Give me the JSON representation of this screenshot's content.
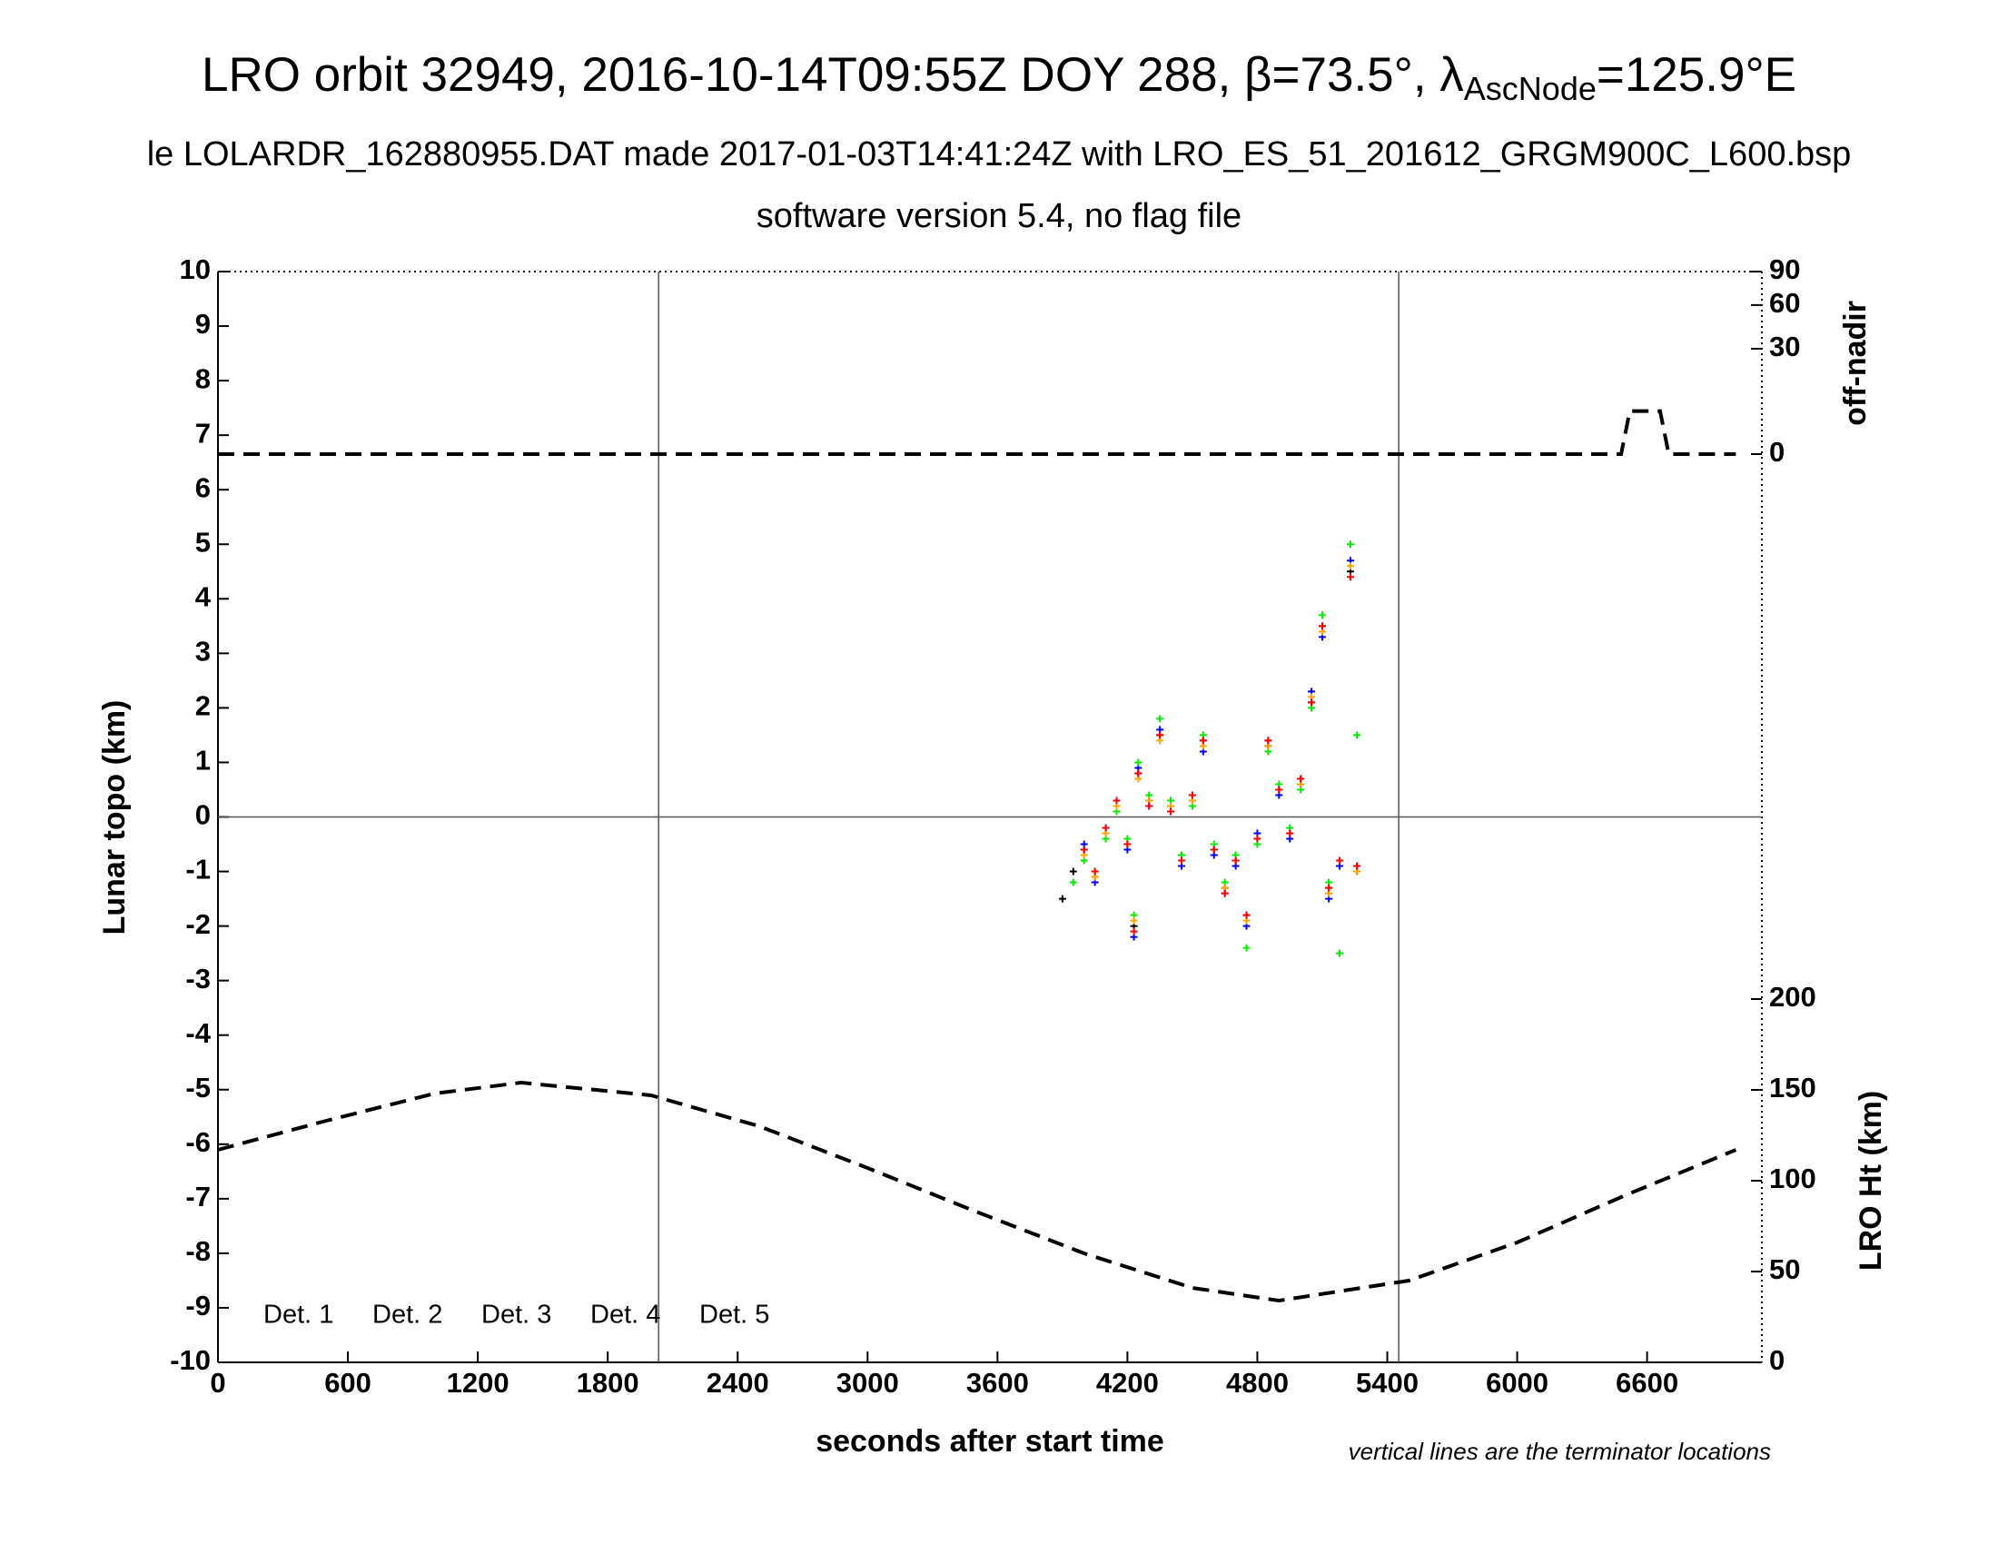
{
  "chart_data": {
    "type": "scatter",
    "title": "LRO orbit 32949, 2016-10-14T09:55Z DOY 288, β=73.5°, λ",
    "title_subscript": "AscNode",
    "title_end": "=125.9°E",
    "subtitle": "le LOLARDR_162880955.DAT made 2017-01-03T14:41:24Z with LRO_ES_51_201612_GRGM900C_L600.bsp",
    "subtitle2": "software version 5.4, no flag file",
    "xlabel": "seconds after start time",
    "ylabel": "Lunar topo (km)",
    "y2label": "off-nadir",
    "y3label": "LRO Ht (km)",
    "note": "vertical lines are the terminator locations",
    "xlim": [
      0,
      7130
    ],
    "xticks": [
      0,
      600,
      1200,
      1800,
      2400,
      3000,
      3600,
      4200,
      4800,
      5400,
      6000,
      6600
    ],
    "ylim": [
      -10,
      10
    ],
    "yticks": [
      -10,
      -9,
      -8,
      -7,
      -6,
      -5,
      -4,
      -3,
      -2,
      -1,
      0,
      1,
      2,
      3,
      4,
      5,
      6,
      7,
      8,
      9,
      10
    ],
    "y2lim": [
      0,
      90
    ],
    "y2scale": "sqrt",
    "y2ticks": [
      0,
      30,
      60,
      90
    ],
    "y3lim": [
      0,
      200
    ],
    "y3ticks": [
      0,
      50,
      100,
      150,
      200
    ],
    "terminators": [
      2035,
      5453
    ],
    "legend": "lower left",
    "x": [
      3900,
      3950,
      4000,
      4050,
      4100,
      4150,
      4200,
      4230,
      4250,
      4300,
      4350,
      4400,
      4450,
      4500,
      4550,
      4600,
      4650,
      4700,
      4750,
      4800,
      4850,
      4900,
      4950,
      5000,
      5050,
      5100,
      5130,
      5180,
      5230,
      5260
    ],
    "series": [
      {
        "name": "Det. 1",
        "color": "#000000",
        "values": [
          -1.5,
          -1.0,
          -0.6,
          -1.1,
          -0.3,
          0.2,
          -0.5,
          -2.0,
          0.8,
          0.3,
          1.5,
          0.2,
          -0.8,
          0.3,
          1.4,
          -0.6,
          -1.3,
          -0.8,
          -1.8,
          -0.4,
          1.3,
          0.5,
          -0.3,
          0.6,
          2.1,
          3.5,
          -1.3,
          -0.8,
          4.5,
          -1.0
        ]
      },
      {
        "name": "Det. 2",
        "color": "#0000ff",
        "values": [
          null,
          null,
          -0.5,
          -1.2,
          -0.2,
          0.3,
          -0.6,
          -2.2,
          0.9,
          0.2,
          1.6,
          0.1,
          -0.9,
          0.4,
          1.2,
          -0.7,
          -1.4,
          -0.9,
          -2.0,
          -0.3,
          1.4,
          0.4,
          -0.4,
          0.7,
          2.3,
          3.3,
          -1.5,
          -0.9,
          4.7,
          -0.9
        ]
      },
      {
        "name": "Det. 3",
        "color": "#00ee00",
        "values": [
          null,
          -1.2,
          -0.8,
          -1.0,
          -0.4,
          0.1,
          -0.4,
          -1.8,
          1.0,
          0.4,
          1.8,
          0.3,
          -0.7,
          0.2,
          1.5,
          -0.5,
          -1.2,
          -0.7,
          -2.4,
          -0.5,
          1.2,
          0.6,
          -0.2,
          0.5,
          2.0,
          3.7,
          -1.2,
          -2.5,
          5.0,
          1.5
        ]
      },
      {
        "name": "Det. 4",
        "color": "#ffa500",
        "values": [
          null,
          null,
          -0.7,
          -1.1,
          -0.3,
          0.2,
          -0.5,
          -1.9,
          0.7,
          0.3,
          1.4,
          0.2,
          -0.8,
          0.3,
          1.3,
          -0.6,
          -1.3,
          -0.8,
          -1.9,
          -0.4,
          1.3,
          0.5,
          -0.3,
          0.6,
          2.2,
          3.4,
          -1.4,
          -0.8,
          4.6,
          -1.0
        ]
      },
      {
        "name": "Det. 5",
        "color": "#ff0000",
        "values": [
          null,
          null,
          -0.6,
          -1.0,
          -0.2,
          0.3,
          -0.5,
          -2.1,
          0.8,
          0.2,
          1.5,
          0.1,
          -0.8,
          0.4,
          1.4,
          -0.6,
          -1.4,
          -0.8,
          -1.8,
          -0.4,
          1.4,
          0.5,
          -0.3,
          0.7,
          2.1,
          3.5,
          -1.3,
          -0.8,
          4.4,
          -0.9
        ]
      }
    ],
    "lines": [
      {
        "axis": "y2",
        "x": [
          0,
          6480,
          6520,
          6660,
          6700,
          7010
        ],
        "values": [
          0,
          0,
          5,
          5,
          0,
          0
        ]
      },
      {
        "axis": "y3",
        "x": [
          0,
          500,
          1000,
          1400,
          2000,
          2500,
          3000,
          3500,
          4000,
          4500,
          4900,
          5500,
          6000,
          6500,
          7010
        ],
        "values": [
          117,
          133,
          148,
          154,
          147,
          130,
          107,
          83,
          60,
          41,
          34,
          45,
          66,
          92,
          117
        ]
      }
    ]
  }
}
